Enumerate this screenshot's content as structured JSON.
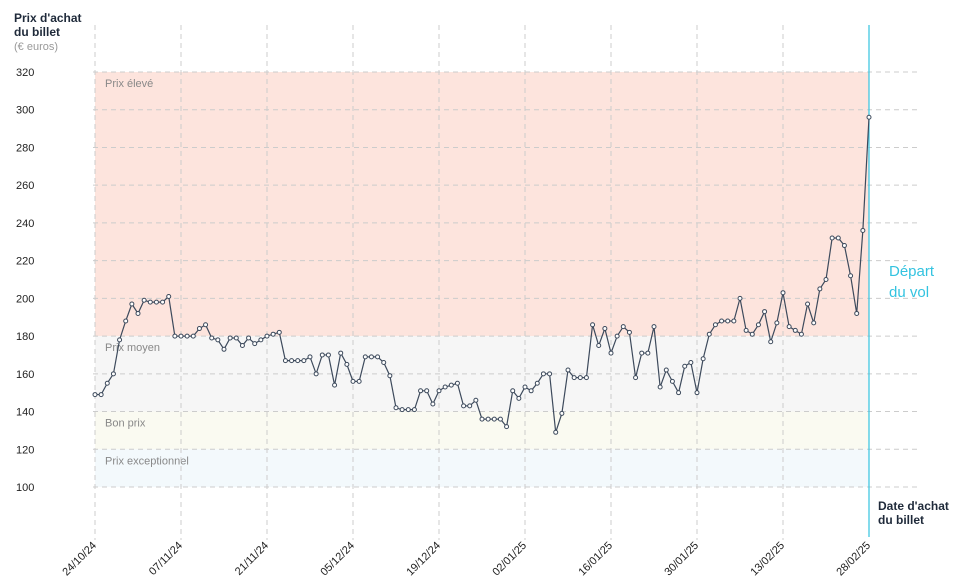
{
  "chart_data": {
    "type": "line",
    "y_label": "Prix d'achat du billet",
    "y_unit": "(€ euros)",
    "x_label": "Date d'achat du billet",
    "annotation": "Départ du vol",
    "categories": [
      "24/10/24",
      null,
      null,
      null,
      null,
      null,
      null,
      null,
      null,
      null,
      null,
      null,
      null,
      null,
      "07/11/24",
      null,
      null,
      null,
      null,
      null,
      null,
      null,
      null,
      null,
      null,
      null,
      null,
      null,
      "21/11/24",
      null,
      null,
      null,
      null,
      null,
      null,
      null,
      null,
      null,
      null,
      null,
      null,
      null,
      "05/12/24",
      null,
      null,
      null,
      null,
      null,
      null,
      null,
      null,
      null,
      null,
      null,
      null,
      null,
      "19/12/24",
      null,
      null,
      null,
      null,
      null,
      null,
      null,
      null,
      null,
      null,
      null,
      null,
      null,
      "02/01/25",
      null,
      null,
      null,
      null,
      null,
      null,
      null,
      null,
      null,
      null,
      null,
      null,
      null,
      "16/01/25",
      null,
      null,
      null,
      null,
      null,
      null,
      null,
      null,
      null,
      null,
      null,
      null,
      null,
      "30/01/25",
      null,
      null,
      null,
      null,
      null,
      null,
      null,
      null,
      null,
      null,
      null,
      null,
      null,
      "13/02/25",
      null,
      null,
      null,
      null,
      null,
      null,
      null,
      null,
      null,
      null,
      null,
      null,
      null,
      "28/02/25"
    ],
    "series": [
      {
        "name": "Prix",
        "color": "#3d4a5c",
        "values": [
          149,
          149,
          155,
          160,
          178,
          188,
          197,
          192,
          199,
          198,
          198,
          198,
          201,
          180,
          180,
          180,
          180,
          184,
          186,
          179,
          178,
          173,
          179,
          179,
          175,
          179,
          176,
          178,
          180,
          181,
          182,
          167,
          167,
          167,
          167,
          169,
          160,
          170,
          170,
          154,
          171,
          165,
          156,
          156,
          169,
          169,
          169,
          166,
          159,
          142,
          141,
          141,
          141,
          151,
          151,
          144,
          151,
          153,
          154,
          155,
          143,
          143,
          146,
          136,
          136,
          136,
          136,
          132,
          151,
          147,
          153,
          151,
          155,
          160,
          160,
          129,
          139,
          162,
          158,
          158,
          158,
          186,
          175,
          184,
          171,
          180,
          185,
          182,
          158,
          171,
          171,
          185,
          153,
          162,
          156,
          150,
          164,
          166,
          150,
          168,
          181,
          186,
          188,
          188,
          188,
          200,
          183,
          181,
          186,
          193,
          177,
          187,
          203,
          185,
          183,
          181,
          197,
          187,
          205,
          210,
          232,
          232,
          228,
          212,
          192,
          236,
          296
        ]
      }
    ],
    "bands": [
      {
        "name": "Prix élevé",
        "from": 180,
        "to": 320,
        "color": "#fde4dd"
      },
      {
        "name": "Prix moyen",
        "from": 140,
        "to": 180,
        "color": "#f6f6f6"
      },
      {
        "name": "Bon prix",
        "from": 120,
        "to": 140,
        "color": "#fafaf1"
      },
      {
        "name": "Prix exceptionnel",
        "from": 100,
        "to": 120,
        "color": "#f3f9fc"
      }
    ],
    "ylim": [
      100,
      320
    ],
    "yticks": [
      100,
      120,
      140,
      160,
      180,
      200,
      220,
      240,
      260,
      280,
      300,
      320
    ],
    "grid": true,
    "annotation_color": "#33c3e0"
  }
}
